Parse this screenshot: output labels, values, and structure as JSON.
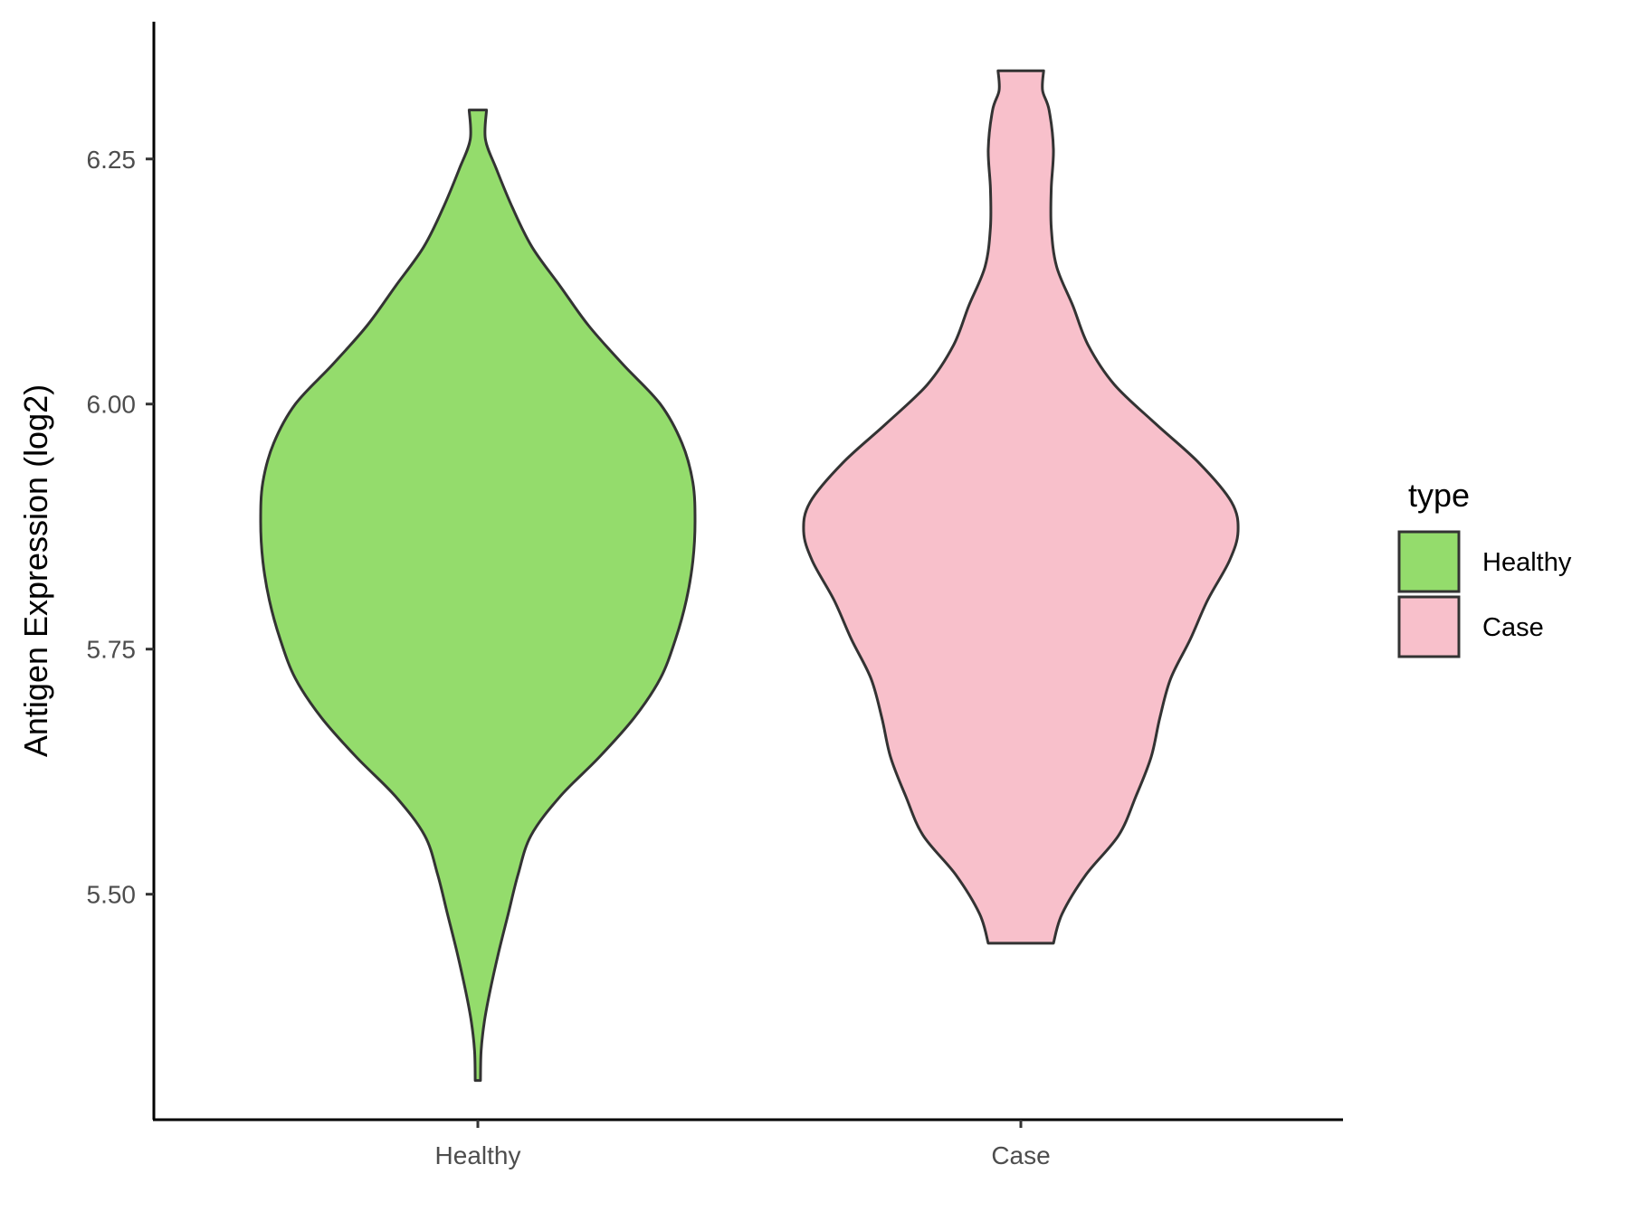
{
  "chart_data": {
    "type": "violin",
    "ylabel": "Antigen Expression (log2)",
    "ylim": [
      5.27,
      6.39
    ],
    "yticks": [
      5.5,
      5.75,
      6.0,
      6.25
    ],
    "ytick_labels": [
      "5.50",
      "5.75",
      "6.00",
      "6.25"
    ],
    "categories": [
      "Healthy",
      "Case"
    ],
    "series": [
      {
        "name": "Healthy",
        "color": "#94dc6c",
        "y_min": 5.31,
        "y_max": 6.3,
        "density_profile": [
          [
            5.31,
            0.012
          ],
          [
            5.34,
            0.015
          ],
          [
            5.37,
            0.03
          ],
          [
            5.4,
            0.055
          ],
          [
            5.44,
            0.095
          ],
          [
            5.48,
            0.14
          ],
          [
            5.52,
            0.185
          ],
          [
            5.56,
            0.245
          ],
          [
            5.6,
            0.38
          ],
          [
            5.64,
            0.56
          ],
          [
            5.68,
            0.72
          ],
          [
            5.72,
            0.84
          ],
          [
            5.76,
            0.91
          ],
          [
            5.8,
            0.96
          ],
          [
            5.84,
            0.99
          ],
          [
            5.88,
            1.0
          ],
          [
            5.92,
            0.99
          ],
          [
            5.96,
            0.94
          ],
          [
            6.0,
            0.84
          ],
          [
            6.04,
            0.67
          ],
          [
            6.08,
            0.51
          ],
          [
            6.12,
            0.38
          ],
          [
            6.16,
            0.25
          ],
          [
            6.2,
            0.16
          ],
          [
            6.24,
            0.085
          ],
          [
            6.27,
            0.035
          ],
          [
            6.3,
            0.04
          ]
        ]
      },
      {
        "name": "Case",
        "color": "#f8c0cb",
        "y_min": 5.45,
        "y_max": 6.34,
        "density_profile": [
          [
            5.45,
            0.15
          ],
          [
            5.48,
            0.19
          ],
          [
            5.52,
            0.3
          ],
          [
            5.56,
            0.45
          ],
          [
            5.6,
            0.53
          ],
          [
            5.64,
            0.6
          ],
          [
            5.68,
            0.64
          ],
          [
            5.72,
            0.69
          ],
          [
            5.76,
            0.78
          ],
          [
            5.8,
            0.86
          ],
          [
            5.84,
            0.96
          ],
          [
            5.87,
            1.0
          ],
          [
            5.9,
            0.97
          ],
          [
            5.94,
            0.82
          ],
          [
            5.98,
            0.62
          ],
          [
            6.02,
            0.43
          ],
          [
            6.06,
            0.31
          ],
          [
            6.1,
            0.24
          ],
          [
            6.14,
            0.165
          ],
          [
            6.18,
            0.14
          ],
          [
            6.22,
            0.14
          ],
          [
            6.26,
            0.15
          ],
          [
            6.3,
            0.13
          ],
          [
            6.32,
            0.1
          ],
          [
            6.34,
            0.105
          ]
        ]
      }
    ],
    "legend": {
      "title": "type",
      "position": "right",
      "entries": [
        "Healthy",
        "Case"
      ]
    },
    "grid": false,
    "outline_color": "#333333"
  }
}
